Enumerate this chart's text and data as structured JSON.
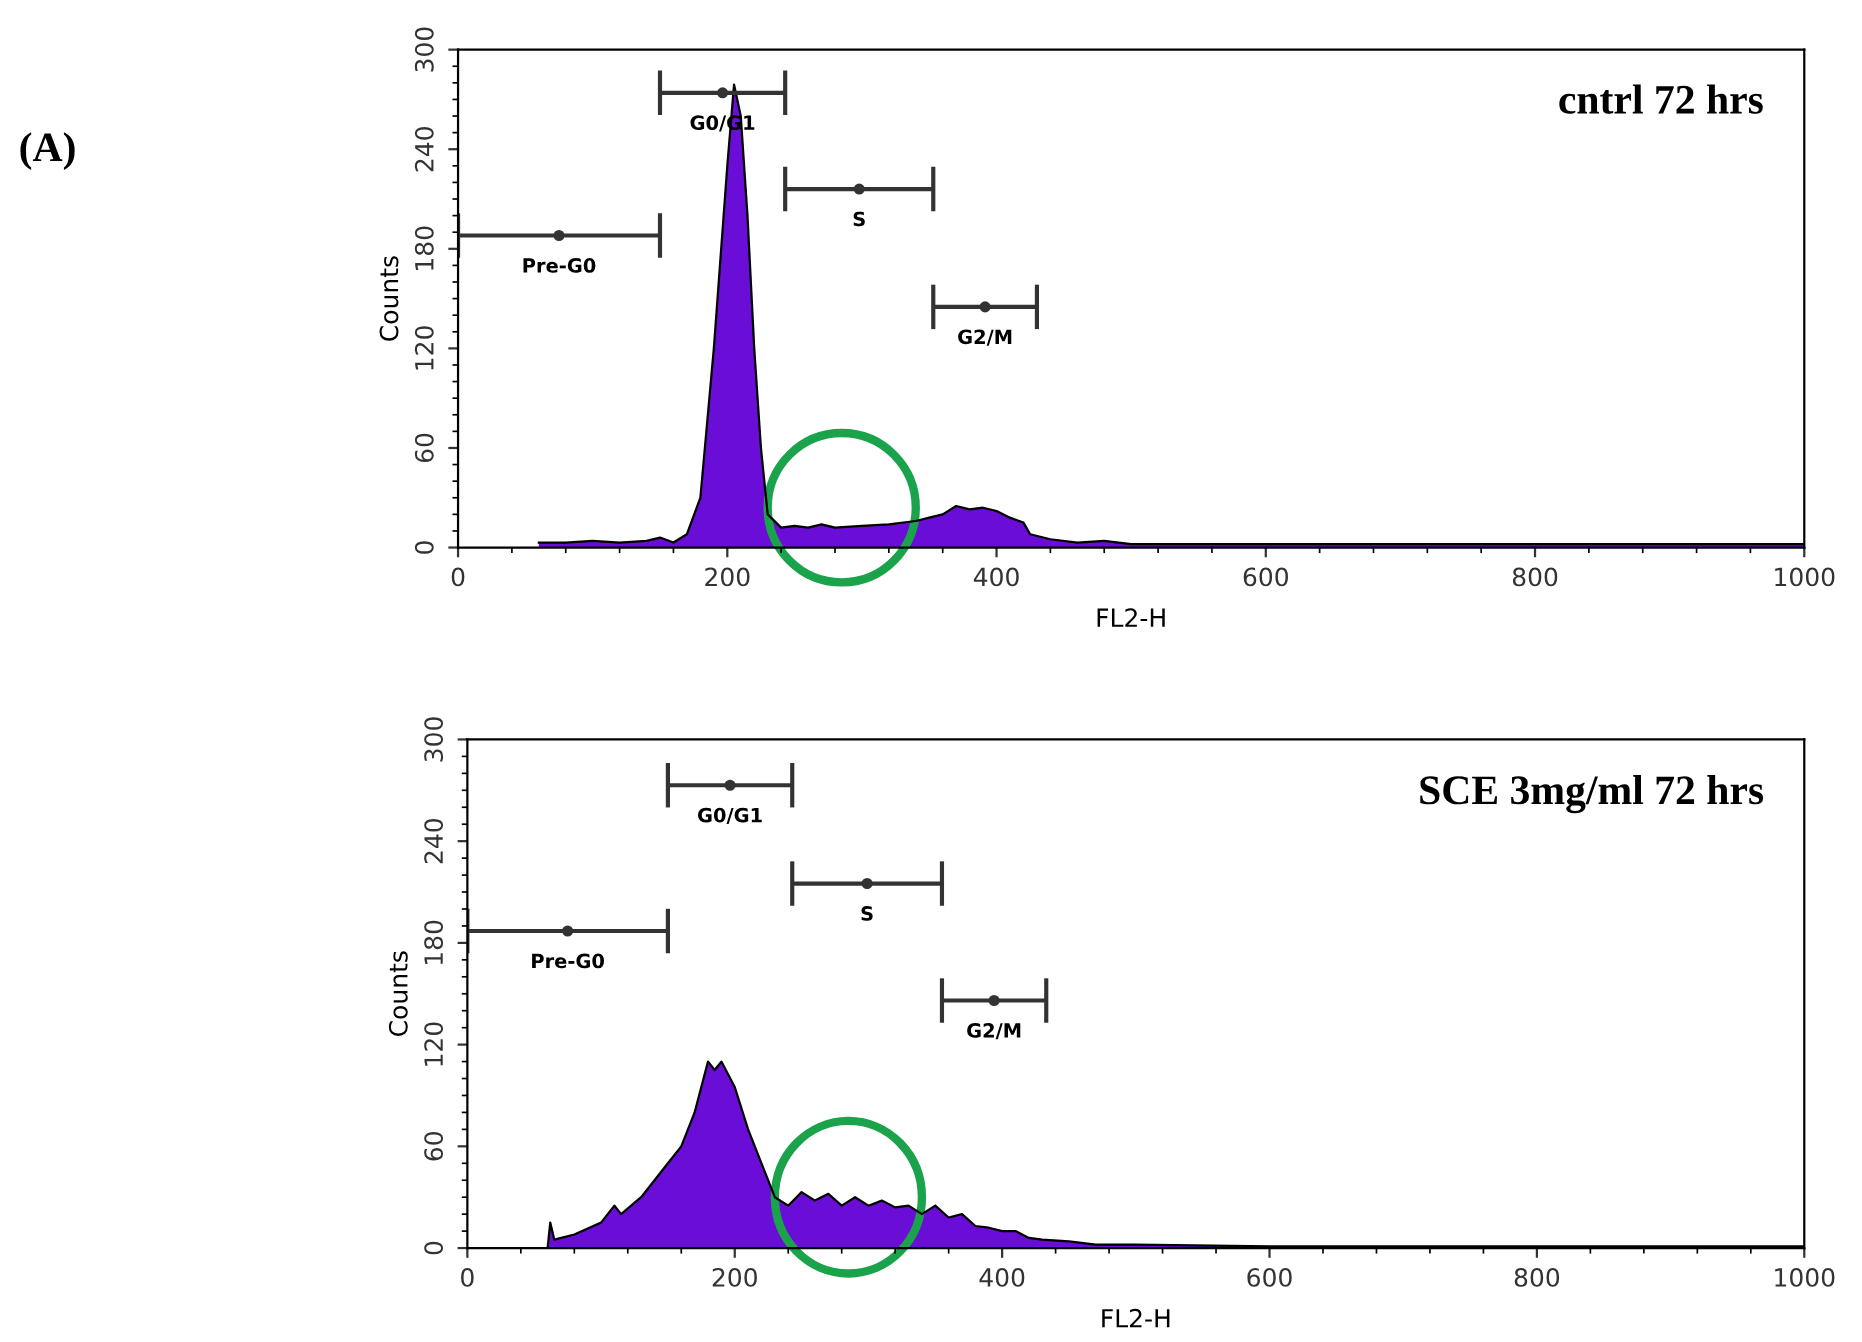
{
  "chart_data": [
    {
      "type": "area",
      "title": "cntrl 72 hrs",
      "xlabel": "FL2-H",
      "ylabel": "Counts",
      "annotations": [
        "(A)",
        {
          "text": "Pre-G0",
          "x": 75,
          "y": 188
        },
        {
          "text": "G0/G1",
          "x": 196.5,
          "y": 274
        },
        {
          "text": "S",
          "x": 298,
          "y": 216
        },
        {
          "text": "G2/M",
          "x": 391.5,
          "y": 145
        }
      ],
      "xlim": [
        0,
        1000
      ],
      "xticks": [
        0,
        200,
        400,
        600,
        800,
        1000
      ],
      "ylim": [
        0,
        300
      ],
      "yticks": [
        0,
        60,
        120,
        180,
        240,
        300
      ],
      "grid": false,
      "legend": false,
      "series": [
        {
          "color": "#6a0dd6",
          "x": [
            60,
            80,
            100,
            120,
            140,
            150,
            160,
            170,
            180,
            190,
            200,
            205,
            210,
            215,
            220,
            225,
            230,
            240,
            250,
            260,
            270,
            280,
            300,
            320,
            340,
            350,
            360,
            370,
            380,
            390,
            400,
            410,
            420,
            425,
            440,
            460,
            480,
            500,
            600,
            700,
            800,
            900,
            1000
          ],
          "values": [
            3,
            3,
            4,
            3,
            4,
            6,
            3,
            8,
            30,
            120,
            230,
            279,
            260,
            200,
            120,
            60,
            20,
            12,
            13,
            12,
            14,
            12,
            13,
            14,
            16,
            18,
            20,
            25,
            23,
            24,
            22,
            18,
            15,
            8,
            5,
            3,
            4,
            2,
            2,
            2,
            2,
            2,
            2
          ]
        },
        {
          "type": "scatter",
          "color": "#333333",
          "marker": "circle",
          "x": [
            75,
            196.5,
            298,
            391.5
          ],
          "values": [
            188,
            274,
            216,
            145
          ],
          "xerrors": [
            [
              0,
              150
            ],
            [
              150,
              243
            ],
            [
              243,
              353
            ],
            [
              353,
              430
            ]
          ]
        }
      ]
    },
    {
      "type": "area",
      "title": "SCE 3mg/ml 72 hrs",
      "xlabel": "FL2-H",
      "ylabel": "Counts",
      "annotations": [
        {
          "text": "Pre-G0",
          "x": 75,
          "y": 187
        },
        {
          "text": "G0/G1",
          "x": 196.5,
          "y": 273
        },
        {
          "text": "S",
          "x": 299,
          "y": 215
        },
        {
          "text": "G2/M",
          "x": 394,
          "y": 146
        }
      ],
      "xlim": [
        0,
        1000
      ],
      "xticks": [
        0,
        200,
        400,
        600,
        800,
        1000
      ],
      "ylim": [
        0,
        300
      ],
      "yticks": [
        0,
        60,
        120,
        180,
        240,
        300
      ],
      "grid": false,
      "legend": false,
      "series": [
        {
          "color": "#6a0dd6",
          "x": [
            60,
            62,
            65,
            80,
            100,
            110,
            115,
            130,
            140,
            150,
            160,
            170,
            180,
            185,
            190,
            200,
            210,
            220,
            230,
            240,
            250,
            260,
            270,
            280,
            290,
            300,
            310,
            320,
            330,
            340,
            350,
            360,
            370,
            380,
            390,
            400,
            410,
            420,
            430,
            450,
            470,
            500,
            600,
            700,
            800,
            900,
            1000
          ],
          "values": [
            0,
            15,
            5,
            8,
            15,
            25,
            20,
            30,
            40,
            50,
            60,
            80,
            110,
            105,
            110,
            95,
            70,
            50,
            30,
            25,
            33,
            28,
            32,
            25,
            30,
            25,
            28,
            24,
            25,
            20,
            25,
            18,
            20,
            13,
            12,
            10,
            10,
            6,
            5,
            4,
            2,
            2,
            1,
            1,
            1,
            1,
            1
          ]
        },
        {
          "type": "scatter",
          "color": "#333333",
          "marker": "circle",
          "x": [
            75,
            196.5,
            299,
            394
          ],
          "values": [
            187,
            273,
            215,
            146
          ],
          "xerrors": [
            [
              0,
              150
            ],
            [
              150,
              243
            ],
            [
              243,
              355
            ],
            [
              355,
              433
            ]
          ]
        }
      ]
    }
  ]
}
